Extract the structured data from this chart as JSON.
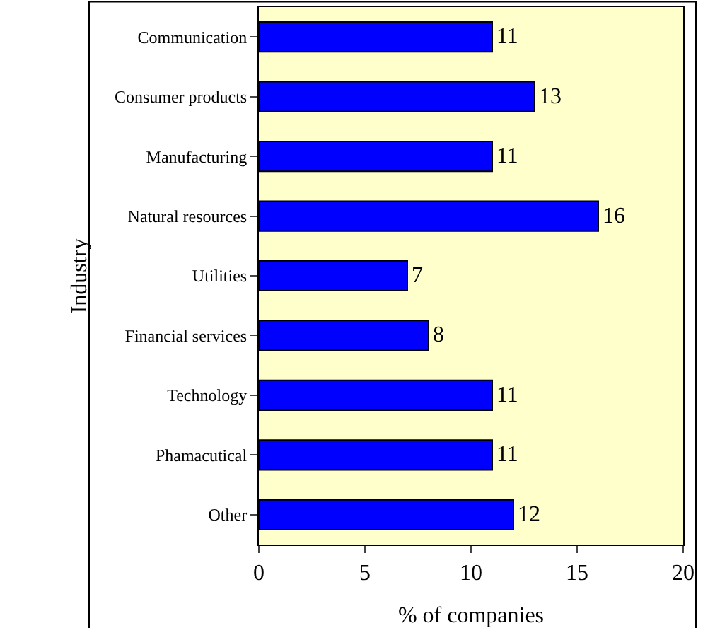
{
  "chart_data": {
    "type": "bar",
    "orientation": "horizontal",
    "xlabel": "% of companies",
    "ylabel": "Industry",
    "categories": [
      "Communication",
      "Consumer products",
      "Manufacturing",
      "Natural resources",
      "Utilities",
      "Financial services",
      "Technology",
      "Phamacutical",
      "Other"
    ],
    "values": [
      11,
      13,
      11,
      16,
      7,
      8,
      11,
      11,
      12
    ],
    "color": "#0000ff",
    "xlim": [
      0,
      20
    ],
    "xticks": [
      0,
      5,
      10,
      15,
      20
    ],
    "data_labels": true,
    "grid": false,
    "legend": false
  }
}
